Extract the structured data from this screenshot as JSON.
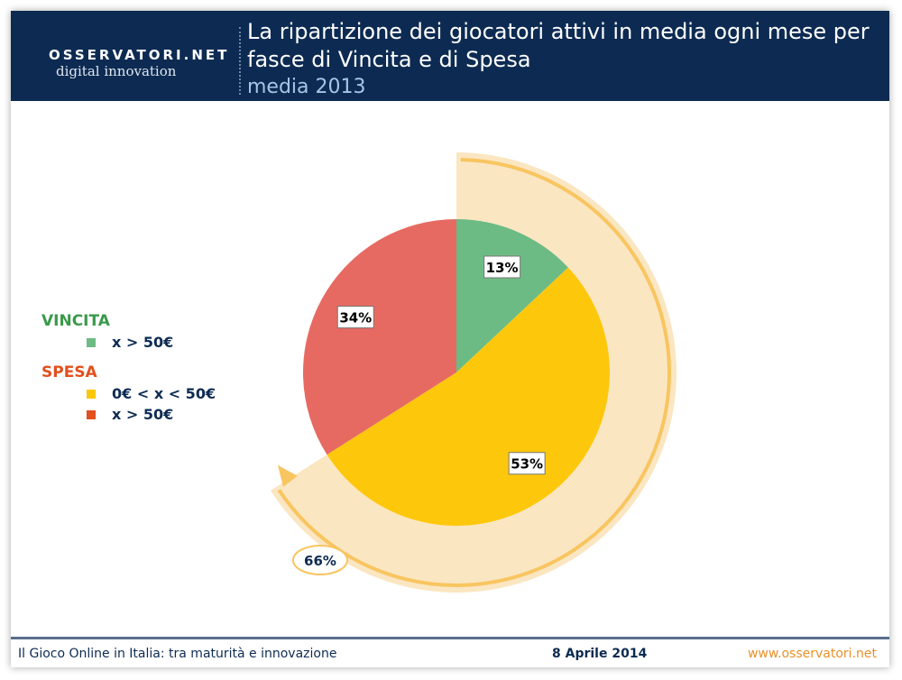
{
  "header": {
    "logo_top": "OSSERVATORI.NET",
    "logo_bottom": "digital innovation",
    "title": "La ripartizione dei giocatori attivi in media ogni mese per fasce di Vincita e di Spesa",
    "subtitle": "media 2013"
  },
  "legend": {
    "vincita": "VINCITA",
    "vincita_items": [
      "x > 50€"
    ],
    "spesa": "SPESA",
    "spesa_items": [
      "0€ < x < 50€",
      "x > 50€"
    ]
  },
  "chart_data": {
    "type": "pie",
    "slices": [
      {
        "label": "13%",
        "value": 13,
        "color": "#6dbb84",
        "category": "VINCITA x > 50€"
      },
      {
        "label": "53%",
        "value": 53,
        "color": "#fdc70c",
        "category": "SPESA 0€ < x < 50€"
      },
      {
        "label": "34%",
        "value": 34,
        "color": "#e66a62",
        "category": "SPESA x > 50€"
      }
    ],
    "annotation": {
      "label": "66%",
      "value": 66,
      "color": "#fbe6c2",
      "stroke": "#f8c560"
    },
    "legend_colors": {
      "vincita": "#6dbb84",
      "spesa_low": "#fdc70c",
      "spesa_high": "#e1501e"
    }
  },
  "footer": {
    "left": "Il Gioco Online in Italia: tra maturità e innovazione",
    "center": "8 Aprile 2014",
    "right": "www.osservatori.net"
  }
}
